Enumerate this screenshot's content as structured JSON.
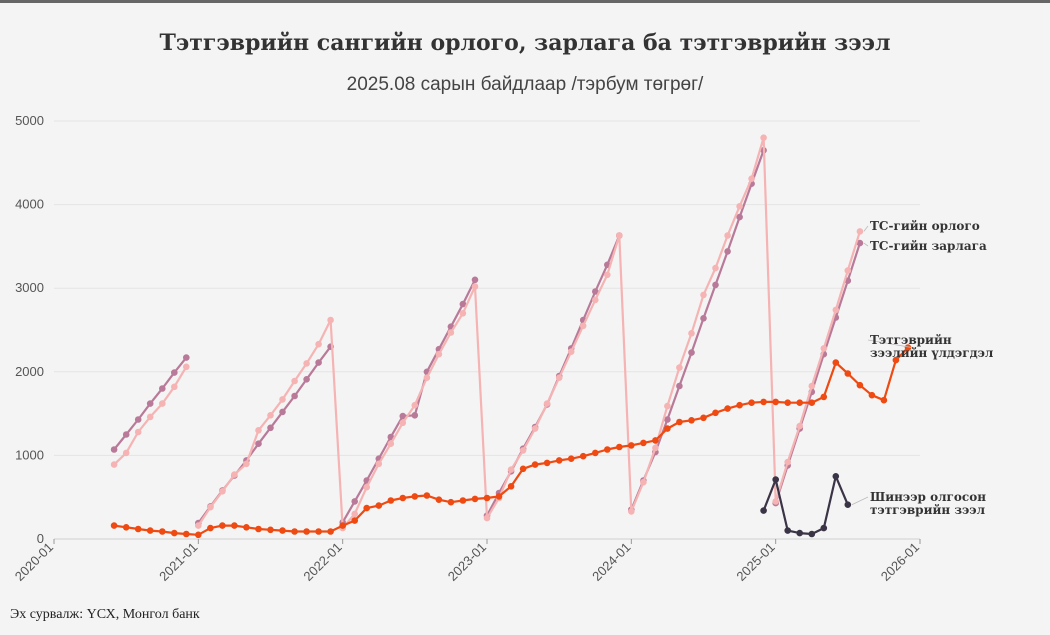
{
  "title": "Тэтгэврийн сангийн орлого, зарлага ба тэтгэврийн зээл",
  "subtitle": "2025.08 сарын байдлаар /тэрбум төгрөг/",
  "source": "Эх сурвалж: ҮСХ, Монгол банк",
  "chart_data": {
    "type": "line",
    "xlim": [
      "2020-01",
      "2026-01"
    ],
    "ylim": [
      0,
      5000
    ],
    "yticks": [
      "0",
      "1000",
      "2000",
      "3000",
      "4000",
      "5000"
    ],
    "xticks": [
      "2020-01",
      "2021-01",
      "2022-01",
      "2023-01",
      "2024-01",
      "2025-01",
      "2026-01"
    ],
    "grid": true,
    "series": [
      {
        "name": "ТС-гийн зарлага",
        "color": "#b87a98",
        "label_lines": [
          "ТС-гийн зарлага"
        ],
        "segments": [
          {
            "start": "2020-06",
            "values": [
              1070,
              1250,
              1430,
              1620,
              1800,
              1990,
              2170
            ]
          },
          {
            "start": "2021-01",
            "values": [
              190,
              390,
              580,
              760,
              940,
              1140,
              1330,
              1520,
              1710,
              1910,
              2110,
              2300
            ]
          },
          {
            "start": "2022-01",
            "values": [
              200,
              450,
              700,
              960,
              1220,
              1470,
              1480,
              2000,
              2270,
              2540,
              2810,
              3100
            ]
          },
          {
            "start": "2023-01",
            "values": [
              280,
              550,
              810,
              1080,
              1340,
              1610,
              1950,
              2280,
              2620,
              2960,
              3280,
              3630
            ]
          },
          {
            "start": "2024-01",
            "values": [
              350,
              700,
              1040,
              1430,
              1830,
              2230,
              2640,
              3040,
              3440,
              3850,
              4250,
              4650
            ]
          },
          {
            "start": "2025-01",
            "values": [
              430,
              880,
              1320,
              1760,
              2210,
              2650,
              3090,
              3540
            ]
          }
        ]
      },
      {
        "name": "ТС-гийн орлого",
        "color": "#f5b3b3",
        "label_lines": [
          "ТС-гийн орлого"
        ],
        "segments": [
          {
            "start": "2020-06",
            "values": [
              890,
              1030,
              1280,
              1460,
              1620,
              1820,
              2060
            ]
          },
          {
            "start": "2021-01",
            "values": [
              160,
              380,
              570,
              770,
              900,
              1300,
              1480,
              1670,
              1890,
              2100,
              2330,
              2620,
              130,
              300,
              620,
              900,
              1140,
              1390,
              1600,
              1930,
              2210,
              2470,
              2700,
              3020,
              250,
              490,
              830,
              1060,
              1320,
              1620,
              1930,
              2240,
              2550,
              2860,
              3160,
              3630,
              330,
              680,
              1090,
              1590,
              2050,
              2460,
              2920,
              3240,
              3630,
              3980,
              4310,
              4800,
              450,
              920,
              1350,
              1830,
              2280,
              2740,
              3210,
              3680
            ]
          }
        ]
      },
      {
        "name": "Тэтгэврийн зээлийн үлдэгдэл",
        "color": "#ee4a12",
        "label_lines": [
          "Тэтгэврийн",
          "зээлийн үлдэгдэл"
        ],
        "segments": [
          {
            "start": "2020-06",
            "values": [
              160,
              140,
              120,
              100,
              90,
              70,
              60,
              50,
              130,
              160,
              160,
              140,
              120,
              110,
              100,
              90,
              90,
              90,
              90,
              160,
              220,
              370,
              400,
              460,
              490,
              510,
              520,
              470,
              440,
              460,
              480,
              490,
              510,
              630,
              840,
              890,
              910,
              940,
              960,
              990,
              1030,
              1070,
              1100,
              1120,
              1150,
              1180,
              1320,
              1400,
              1420,
              1450,
              1510,
              1560,
              1600,
              1630,
              1640,
              1640,
              1630,
              1630,
              1630,
              1700,
              2110,
              1980,
              1840,
              1720,
              1660,
              2140,
              2290
            ]
          }
        ]
      },
      {
        "name": "Шинээр олгосон тэтгэврийн зээл",
        "color": "#3b3446",
        "label_lines": [
          "Шинээр олгосон",
          "тэтгэврийн зээл"
        ],
        "segments": [
          {
            "start": "2024-12",
            "values": [
              340,
              710,
              100,
              70,
              60,
              130,
              750,
              410
            ]
          }
        ]
      }
    ]
  }
}
